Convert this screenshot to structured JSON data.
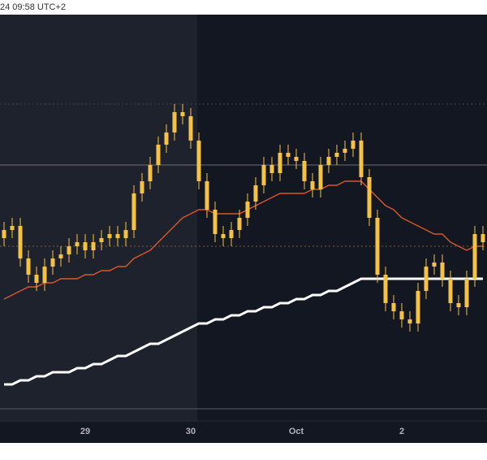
{
  "chart_data": {
    "type": "candlestick",
    "title": "24 09:58 UTC+2",
    "color": "#f5c242",
    "ylim": [
      0,
      100
    ],
    "categories": [
      null,
      null,
      null,
      null,
      null,
      null,
      null,
      null,
      null,
      null,
      "29",
      null,
      null,
      null,
      null,
      null,
      null,
      null,
      null,
      null,
      null,
      null,
      null,
      "30",
      null,
      null,
      null,
      null,
      null,
      null,
      null,
      null,
      null,
      null,
      null,
      null,
      "Oct",
      null,
      null,
      null,
      null,
      null,
      null,
      null,
      null,
      null,
      null,
      null,
      null,
      "2",
      null,
      null,
      null,
      null,
      null,
      null,
      null,
      null,
      null,
      null
    ],
    "open": [
      45,
      47,
      48,
      40,
      36,
      34,
      38,
      40,
      41,
      43,
      44,
      42,
      44,
      45,
      46,
      45,
      47,
      56,
      59,
      63,
      68,
      71,
      76,
      75,
      69,
      59,
      52,
      46,
      45,
      47,
      50,
      54,
      58,
      63,
      61,
      66,
      65,
      64,
      59,
      57,
      63,
      65,
      66,
      67,
      69,
      60,
      50,
      36,
      29,
      27,
      25,
      24,
      32,
      38,
      39,
      35,
      29,
      28,
      35,
      46
    ],
    "high": [
      49,
      50,
      50,
      42,
      38,
      40,
      42,
      43,
      45,
      46,
      46,
      46,
      47,
      48,
      48,
      49,
      58,
      61,
      65,
      70,
      73,
      78,
      78,
      77,
      71,
      61,
      54,
      48,
      49,
      52,
      56,
      60,
      65,
      65,
      68,
      68,
      67,
      66,
      61,
      65,
      67,
      68,
      69,
      71,
      71,
      62,
      52,
      38,
      31,
      29,
      27,
      34,
      40,
      41,
      41,
      37,
      31,
      37,
      48,
      48
    ],
    "low": [
      43,
      45,
      38,
      34,
      32,
      32,
      36,
      38,
      39,
      41,
      40,
      40,
      42,
      43,
      43,
      43,
      45,
      54,
      57,
      61,
      66,
      69,
      73,
      67,
      57,
      50,
      44,
      43,
      43,
      45,
      48,
      52,
      56,
      59,
      59,
      63,
      62,
      57,
      55,
      55,
      61,
      63,
      64,
      65,
      58,
      48,
      34,
      27,
      25,
      23,
      22,
      22,
      30,
      36,
      33,
      27,
      26,
      26,
      33,
      42
    ],
    "close": [
      47,
      48,
      40,
      36,
      34,
      38,
      40,
      41,
      43,
      44,
      42,
      44,
      45,
      46,
      45,
      47,
      56,
      59,
      63,
      68,
      71,
      76,
      75,
      69,
      59,
      52,
      46,
      45,
      47,
      50,
      54,
      58,
      63,
      61,
      66,
      65,
      64,
      59,
      57,
      63,
      65,
      66,
      67,
      69,
      60,
      50,
      36,
      29,
      27,
      25,
      24,
      32,
      38,
      39,
      35,
      29,
      28,
      35,
      46,
      44
    ],
    "series": [
      {
        "color": "#d9572b",
        "values": [
          30,
          31,
          32,
          33,
          33,
          34,
          34,
          35,
          35,
          35,
          36,
          36,
          37,
          37,
          38,
          38,
          40,
          41,
          42,
          44,
          46,
          48,
          50,
          51,
          52,
          52,
          51,
          51,
          51,
          51,
          52,
          53,
          54,
          55,
          56,
          56,
          56,
          56,
          57,
          57,
          58,
          58,
          59,
          59,
          59,
          57,
          55,
          53,
          52,
          50,
          49,
          48,
          47,
          46,
          46,
          44,
          43,
          42,
          43,
          43
        ]
      },
      {
        "color": "#ffffff",
        "values": [
          9,
          9,
          10,
          10,
          11,
          11,
          12,
          12,
          12,
          13,
          13,
          14,
          14,
          15,
          16,
          16,
          17,
          18,
          19,
          19,
          20,
          21,
          22,
          23,
          24,
          24,
          25,
          25,
          26,
          26,
          27,
          27,
          28,
          28,
          29,
          29,
          30,
          30,
          31,
          31,
          32,
          32,
          33,
          34,
          35,
          35,
          35,
          35,
          35,
          35,
          35,
          35,
          35,
          35,
          35,
          35,
          35,
          35,
          35,
          35
        ]
      }
    ],
    "price_lines": [
      {
        "value": 78,
        "color": "#3a3f4c",
        "dash": true
      },
      {
        "value": 63,
        "color": "#6e6e74",
        "dash": false
      },
      {
        "value": 43,
        "color": "#8a5a24",
        "dash": true
      },
      {
        "value": 3,
        "color": "#5b5560",
        "dash": false
      }
    ]
  }
}
